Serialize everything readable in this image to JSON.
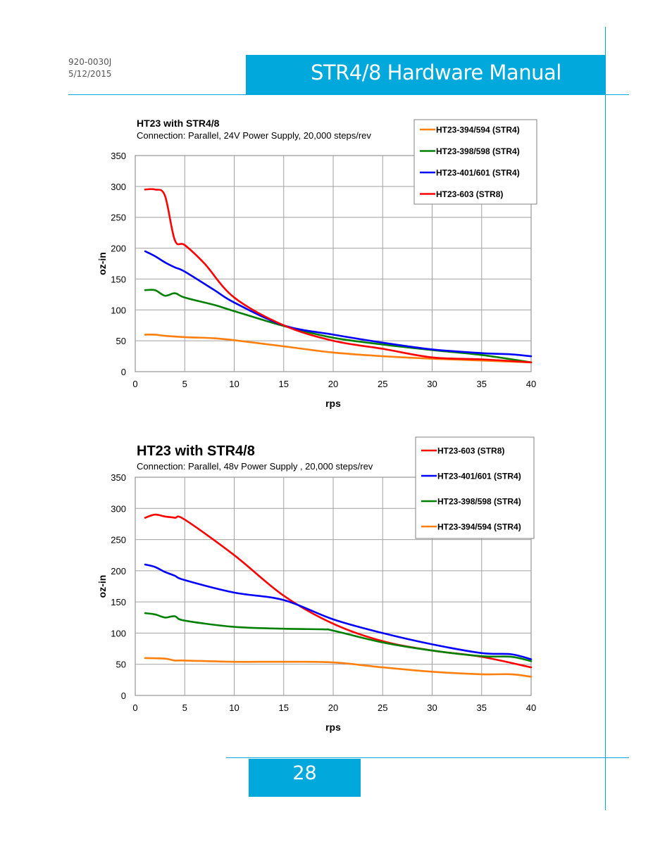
{
  "header": {
    "doc_number": "920-0030J",
    "date": "5/12/2015",
    "title": "STR4/8 Hardware Manual"
  },
  "footer": {
    "page_number": "28"
  },
  "colors": {
    "accent": "#00a8dc"
  },
  "chart_data": [
    {
      "type": "line",
      "title": "HT23 with STR4/8",
      "subtitle": "Connection: Parallel, 24V Power Supply, 20,000 steps/rev",
      "xlabel": "rps",
      "ylabel": "oz-in",
      "xlim": [
        0,
        40
      ],
      "ylim": [
        0,
        350
      ],
      "xticks": [
        0,
        5,
        10,
        15,
        20,
        25,
        30,
        35,
        40
      ],
      "yticks": [
        0,
        50,
        100,
        150,
        200,
        250,
        300,
        350
      ],
      "grid": true,
      "legend_position": "top-right",
      "series": [
        {
          "name": "HT23-394/594 (STR4)",
          "color": "#ff7f0e",
          "points": [
            [
              1,
              60
            ],
            [
              2,
              60
            ],
            [
              3,
              58
            ],
            [
              5,
              56
            ],
            [
              8,
              54
            ],
            [
              10,
              51
            ],
            [
              15,
              41
            ],
            [
              20,
              31
            ],
            [
              25,
              25
            ],
            [
              30,
              21
            ],
            [
              35,
              18
            ],
            [
              40,
              15
            ]
          ]
        },
        {
          "name": "HT23-398/598 (STR4)",
          "color": "#008000",
          "points": [
            [
              1,
              132
            ],
            [
              2,
              132
            ],
            [
              3,
              123
            ],
            [
              4,
              127
            ],
            [
              5,
              120
            ],
            [
              8,
              108
            ],
            [
              10,
              98
            ],
            [
              15,
              74
            ],
            [
              20,
              55
            ],
            [
              25,
              44
            ],
            [
              30,
              35
            ],
            [
              35,
              27
            ],
            [
              40,
              15
            ]
          ]
        },
        {
          "name": "HT23-401/601 (STR4)",
          "color": "#0000ff",
          "points": [
            [
              1,
              195
            ],
            [
              2,
              187
            ],
            [
              3,
              177
            ],
            [
              4,
              169
            ],
            [
              5,
              162
            ],
            [
              8,
              132
            ],
            [
              10,
              112
            ],
            [
              15,
              75
            ],
            [
              20,
              60
            ],
            [
              25,
              47
            ],
            [
              30,
              36
            ],
            [
              35,
              30
            ],
            [
              38,
              28
            ],
            [
              40,
              25
            ]
          ]
        },
        {
          "name": "HT23-603 (STR8)",
          "color": "#ff0000",
          "points": [
            [
              1,
              295
            ],
            [
              2,
              295
            ],
            [
              3,
              285
            ],
            [
              4,
              213
            ],
            [
              5,
              205
            ],
            [
              7,
              175
            ],
            [
              10,
              120
            ],
            [
              15,
              75
            ],
            [
              20,
              50
            ],
            [
              25,
              37
            ],
            [
              30,
              23
            ],
            [
              35,
              20
            ],
            [
              40,
              15
            ]
          ]
        }
      ]
    },
    {
      "type": "line",
      "title": "HT23 with STR4/8",
      "subtitle": "Connection: Parallel, 48v Power Supply , 20,000 steps/rev",
      "xlabel": "rps",
      "ylabel": "oz-in",
      "xlim": [
        0,
        40
      ],
      "ylim": [
        0,
        350
      ],
      "xticks": [
        0,
        5,
        10,
        15,
        20,
        25,
        30,
        35,
        40
      ],
      "yticks": [
        0,
        50,
        100,
        150,
        200,
        250,
        300,
        350
      ],
      "grid": true,
      "legend_position": "top-right",
      "series": [
        {
          "name": "HT23-603 (STR8)",
          "color": "#ff0000",
          "points": [
            [
              1,
              285
            ],
            [
              2,
              290
            ],
            [
              3,
              287
            ],
            [
              4,
              285
            ],
            [
              5,
              282
            ],
            [
              10,
              225
            ],
            [
              15,
              160
            ],
            [
              20,
              115
            ],
            [
              25,
              87
            ],
            [
              30,
              72
            ],
            [
              35,
              62
            ],
            [
              40,
              45
            ]
          ]
        },
        {
          "name": "HT23-401/601 (STR4)",
          "color": "#0000ff",
          "points": [
            [
              1,
              210
            ],
            [
              2,
              206
            ],
            [
              3,
              198
            ],
            [
              4,
              192
            ],
            [
              5,
              185
            ],
            [
              10,
              165
            ],
            [
              15,
              153
            ],
            [
              20,
              122
            ],
            [
              25,
              100
            ],
            [
              30,
              82
            ],
            [
              35,
              68
            ],
            [
              38,
              66
            ],
            [
              40,
              58
            ]
          ]
        },
        {
          "name": "HT23-398/598 (STR4)",
          "color": "#008000",
          "points": [
            [
              1,
              132
            ],
            [
              2,
              130
            ],
            [
              3,
              125
            ],
            [
              4,
              127
            ],
            [
              5,
              120
            ],
            [
              10,
              110
            ],
            [
              15,
              107
            ],
            [
              19,
              106
            ],
            [
              20,
              104
            ],
            [
              25,
              85
            ],
            [
              30,
              72
            ],
            [
              35,
              63
            ],
            [
              38,
              62
            ],
            [
              40,
              55
            ]
          ]
        },
        {
          "name": "HT23-394/594 (STR4)",
          "color": "#ff7f0e",
          "points": [
            [
              1,
              60
            ],
            [
              3,
              59
            ],
            [
              4,
              56
            ],
            [
              5,
              56
            ],
            [
              10,
              54
            ],
            [
              15,
              54
            ],
            [
              20,
              53
            ],
            [
              25,
              45
            ],
            [
              30,
              38
            ],
            [
              35,
              34
            ],
            [
              38,
              34
            ],
            [
              40,
              30
            ]
          ]
        }
      ]
    }
  ]
}
